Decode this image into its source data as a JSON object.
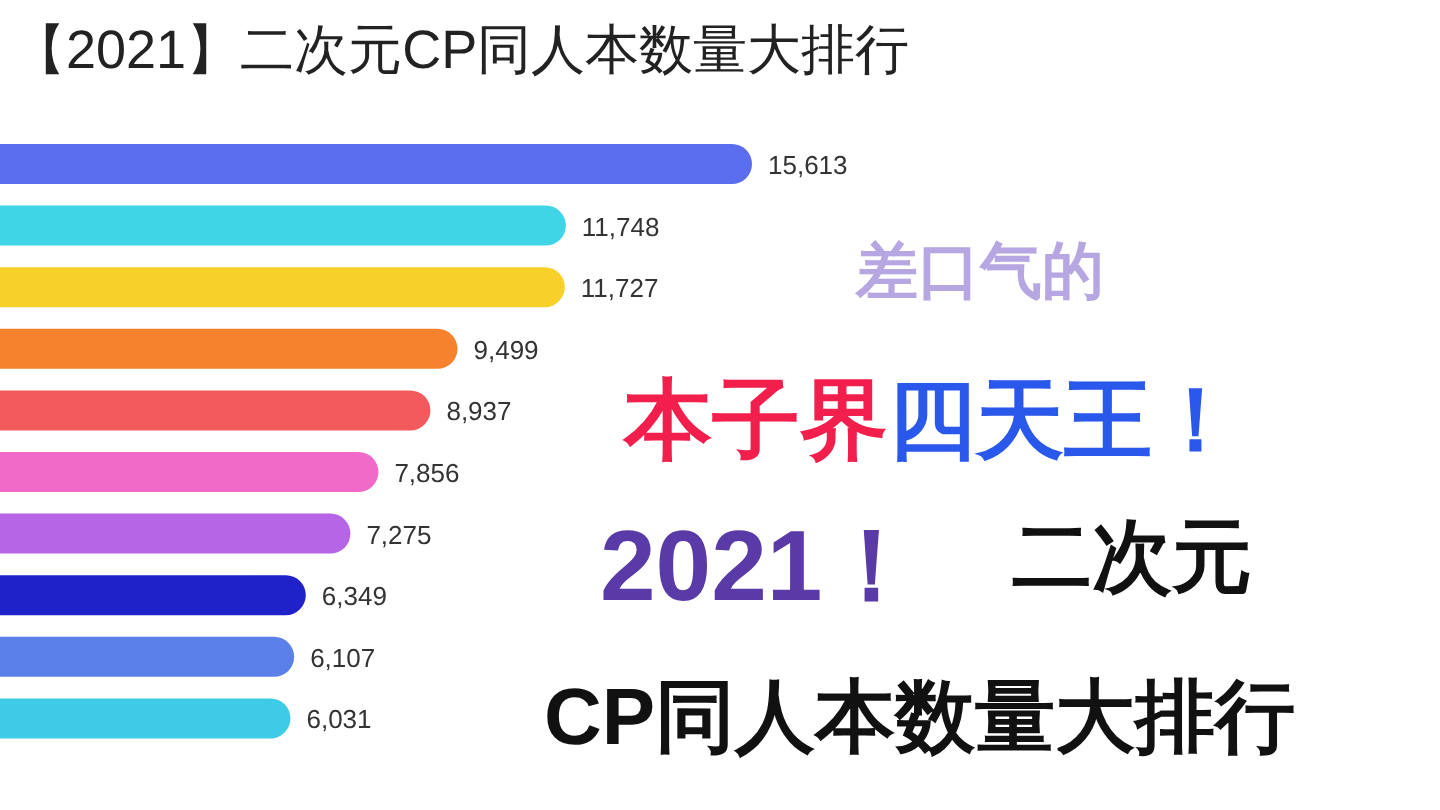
{
  "chart_data": {
    "type": "bar",
    "orientation": "horizontal",
    "value_labels": [
      "15,613",
      "11,748",
      "11,727",
      "9,499",
      "8,937",
      "7,856",
      "7,275",
      "6,349",
      "6,107",
      "6,031"
    ],
    "title": "【2021】二次元CP同人本数量大排行",
    "categories": [
      null,
      null,
      null,
      null,
      null,
      null,
      null,
      null,
      null,
      null
    ],
    "values": [
      15613,
      11748,
      11727,
      9499,
      8937,
      7856,
      7275,
      6349,
      6107,
      6031
    ],
    "colors": [
      "#5b6ef0",
      "#3fd4e6",
      "#f7d02a",
      "#f7822e",
      "#f25a5e",
      "#f26ac8",
      "#b665e6",
      "#1e22c8",
      "#5b80ea",
      "#3ecbe6"
    ],
    "annotations": [
      "差口气的",
      "本子界",
      "四天王！",
      "2021！",
      "二次元",
      "CP同人本数量大排行"
    ]
  }
}
